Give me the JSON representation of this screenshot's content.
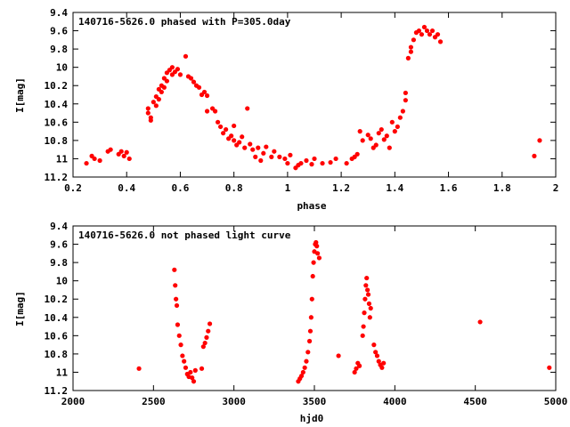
{
  "chart_data": [
    {
      "type": "scatter",
      "title": "140716-5626.0 phased with P=305.0day",
      "xlabel": "phase",
      "ylabel": "I[mag]",
      "xlim": [
        0.2,
        2.0
      ],
      "ylim": [
        11.2,
        9.4
      ],
      "y_inverted": true,
      "xticks": [
        "0.2",
        "0.4",
        "0.6",
        "0.8",
        "1",
        "1.2",
        "1.4",
        "1.6",
        "1.8",
        "2"
      ],
      "xtick_values": [
        0.2,
        0.4,
        0.6,
        0.8,
        1.0,
        1.2,
        1.4,
        1.6,
        1.8,
        2.0
      ],
      "yticks": [
        "9.4",
        "9.6",
        "9.8",
        "10",
        "10.2",
        "10.4",
        "10.6",
        "10.8",
        "11",
        "11.2"
      ],
      "ytick_values": [
        9.4,
        9.6,
        9.8,
        10.0,
        10.2,
        10.4,
        10.6,
        10.8,
        11.0,
        11.2
      ],
      "grid": false,
      "marker_color": "#ff0000",
      "series": [
        {
          "points": [
            [
              0.25,
              11.05
            ],
            [
              0.27,
              10.97
            ],
            [
              0.28,
              11.0
            ],
            [
              0.3,
              11.02
            ],
            [
              0.33,
              10.92
            ],
            [
              0.34,
              10.9
            ],
            [
              0.37,
              10.95
            ],
            [
              0.38,
              10.92
            ],
            [
              0.39,
              10.97
            ],
            [
              0.4,
              10.93
            ],
            [
              0.41,
              11.0
            ],
            [
              0.48,
              10.45
            ],
            [
              0.48,
              10.5
            ],
            [
              0.49,
              10.58
            ],
            [
              0.49,
              10.55
            ],
            [
              0.5,
              10.38
            ],
            [
              0.51,
              10.42
            ],
            [
              0.51,
              10.32
            ],
            [
              0.52,
              10.24
            ],
            [
              0.52,
              10.35
            ],
            [
              0.53,
              10.2
            ],
            [
              0.53,
              10.27
            ],
            [
              0.54,
              10.12
            ],
            [
              0.54,
              10.22
            ],
            [
              0.55,
              10.06
            ],
            [
              0.55,
              10.15
            ],
            [
              0.56,
              10.03
            ],
            [
              0.57,
              10.0
            ],
            [
              0.57,
              10.08
            ],
            [
              0.58,
              10.05
            ],
            [
              0.59,
              10.02
            ],
            [
              0.6,
              10.08
            ],
            [
              0.62,
              9.88
            ],
            [
              0.63,
              10.1
            ],
            [
              0.64,
              10.12
            ],
            [
              0.65,
              10.16
            ],
            [
              0.66,
              10.2
            ],
            [
              0.67,
              10.22
            ],
            [
              0.68,
              10.3
            ],
            [
              0.69,
              10.27
            ],
            [
              0.7,
              10.31
            ],
            [
              0.7,
              10.48
            ],
            [
              0.72,
              10.45
            ],
            [
              0.73,
              10.48
            ],
            [
              0.74,
              10.6
            ],
            [
              0.75,
              10.65
            ],
            [
              0.76,
              10.72
            ],
            [
              0.77,
              10.68
            ],
            [
              0.78,
              10.78
            ],
            [
              0.79,
              10.75
            ],
            [
              0.8,
              10.64
            ],
            [
              0.8,
              10.8
            ],
            [
              0.81,
              10.85
            ],
            [
              0.82,
              10.82
            ],
            [
              0.83,
              10.76
            ],
            [
              0.84,
              10.88
            ],
            [
              0.85,
              10.45
            ],
            [
              0.86,
              10.84
            ],
            [
              0.87,
              10.9
            ],
            [
              0.88,
              10.98
            ],
            [
              0.89,
              10.88
            ],
            [
              0.9,
              11.02
            ],
            [
              0.91,
              10.94
            ],
            [
              0.92,
              10.87
            ],
            [
              0.94,
              10.98
            ],
            [
              0.95,
              10.92
            ],
            [
              0.97,
              10.98
            ],
            [
              0.99,
              11.0
            ],
            [
              1.0,
              11.05
            ],
            [
              1.01,
              10.96
            ],
            [
              1.03,
              11.1
            ],
            [
              1.04,
              11.07
            ],
            [
              1.05,
              11.05
            ],
            [
              1.07,
              11.02
            ],
            [
              1.09,
              11.06
            ],
            [
              1.1,
              11.0
            ],
            [
              1.13,
              11.05
            ],
            [
              1.16,
              11.04
            ],
            [
              1.18,
              11.0
            ],
            [
              1.22,
              11.05
            ],
            [
              1.24,
              11.0
            ],
            [
              1.25,
              10.98
            ],
            [
              1.26,
              10.95
            ],
            [
              1.27,
              10.7
            ],
            [
              1.28,
              10.8
            ],
            [
              1.3,
              10.74
            ],
            [
              1.31,
              10.78
            ],
            [
              1.32,
              10.88
            ],
            [
              1.33,
              10.85
            ],
            [
              1.34,
              10.72
            ],
            [
              1.35,
              10.68
            ],
            [
              1.36,
              10.79
            ],
            [
              1.37,
              10.75
            ],
            [
              1.38,
              10.88
            ],
            [
              1.39,
              10.6
            ],
            [
              1.4,
              10.7
            ],
            [
              1.41,
              10.65
            ],
            [
              1.42,
              10.55
            ],
            [
              1.43,
              10.48
            ],
            [
              1.44,
              10.36
            ],
            [
              1.44,
              10.28
            ],
            [
              1.45,
              9.9
            ],
            [
              1.46,
              9.83
            ],
            [
              1.46,
              9.78
            ],
            [
              1.47,
              9.7
            ],
            [
              1.48,
              9.62
            ],
            [
              1.49,
              9.6
            ],
            [
              1.5,
              9.64
            ],
            [
              1.51,
              9.56
            ],
            [
              1.52,
              9.6
            ],
            [
              1.53,
              9.64
            ],
            [
              1.54,
              9.6
            ],
            [
              1.55,
              9.67
            ],
            [
              1.56,
              9.64
            ],
            [
              1.57,
              9.72
            ],
            [
              1.92,
              10.97
            ],
            [
              1.94,
              10.8
            ]
          ]
        }
      ]
    },
    {
      "type": "scatter",
      "title": "140716-5626.0 not phased light curve",
      "xlabel": "hjd0",
      "ylabel": "I[mag]",
      "xlim": [
        2000,
        5000
      ],
      "ylim": [
        11.2,
        9.4
      ],
      "y_inverted": true,
      "xticks": [
        "2000",
        "2500",
        "3000",
        "3500",
        "4000",
        "4500",
        "5000"
      ],
      "xtick_values": [
        2000,
        2500,
        3000,
        3500,
        4000,
        4500,
        5000
      ],
      "yticks": [
        "9.4",
        "9.6",
        "9.8",
        "10",
        "10.2",
        "10.4",
        "10.6",
        "10.8",
        "11",
        "11.2"
      ],
      "ytick_values": [
        9.4,
        9.6,
        9.8,
        10.0,
        10.2,
        10.4,
        10.6,
        10.8,
        11.0,
        11.2
      ],
      "grid": false,
      "marker_color": "#ff0000",
      "series": [
        {
          "points": [
            [
              2410,
              10.96
            ],
            [
              2630,
              9.88
            ],
            [
              2635,
              10.05
            ],
            [
              2640,
              10.2
            ],
            [
              2645,
              10.27
            ],
            [
              2650,
              10.48
            ],
            [
              2660,
              10.6
            ],
            [
              2670,
              10.7
            ],
            [
              2680,
              10.82
            ],
            [
              2690,
              10.88
            ],
            [
              2700,
              10.95
            ],
            [
              2710,
              11.02
            ],
            [
              2720,
              11.05
            ],
            [
              2730,
              11.0
            ],
            [
              2740,
              11.06
            ],
            [
              2750,
              11.1
            ],
            [
              2760,
              10.98
            ],
            [
              2800,
              10.96
            ],
            [
              2810,
              10.72
            ],
            [
              2820,
              10.68
            ],
            [
              2830,
              10.62
            ],
            [
              2840,
              10.55
            ],
            [
              2850,
              10.47
            ],
            [
              3400,
              11.1
            ],
            [
              3410,
              11.07
            ],
            [
              3420,
              11.04
            ],
            [
              3430,
              11.0
            ],
            [
              3440,
              10.95
            ],
            [
              3450,
              10.88
            ],
            [
              3460,
              10.78
            ],
            [
              3470,
              10.66
            ],
            [
              3475,
              10.55
            ],
            [
              3480,
              10.4
            ],
            [
              3485,
              10.2
            ],
            [
              3490,
              9.95
            ],
            [
              3495,
              9.8
            ],
            [
              3500,
              9.68
            ],
            [
              3505,
              9.6
            ],
            [
              3510,
              9.58
            ],
            [
              3515,
              9.62
            ],
            [
              3520,
              9.7
            ],
            [
              3530,
              9.75
            ],
            [
              3650,
              10.82
            ],
            [
              3750,
              11.0
            ],
            [
              3760,
              10.96
            ],
            [
              3770,
              10.9
            ],
            [
              3780,
              10.93
            ],
            [
              3800,
              10.6
            ],
            [
              3805,
              10.5
            ],
            [
              3810,
              10.35
            ],
            [
              3815,
              10.2
            ],
            [
              3820,
              10.05
            ],
            [
              3825,
              9.97
            ],
            [
              3830,
              10.1
            ],
            [
              3835,
              10.15
            ],
            [
              3840,
              10.25
            ],
            [
              3845,
              10.4
            ],
            [
              3850,
              10.3
            ],
            [
              3870,
              10.7
            ],
            [
              3880,
              10.78
            ],
            [
              3890,
              10.82
            ],
            [
              3900,
              10.88
            ],
            [
              3910,
              10.92
            ],
            [
              3920,
              10.95
            ],
            [
              3930,
              10.9
            ],
            [
              4530,
              10.45
            ],
            [
              4960,
              10.95
            ]
          ]
        }
      ]
    }
  ]
}
